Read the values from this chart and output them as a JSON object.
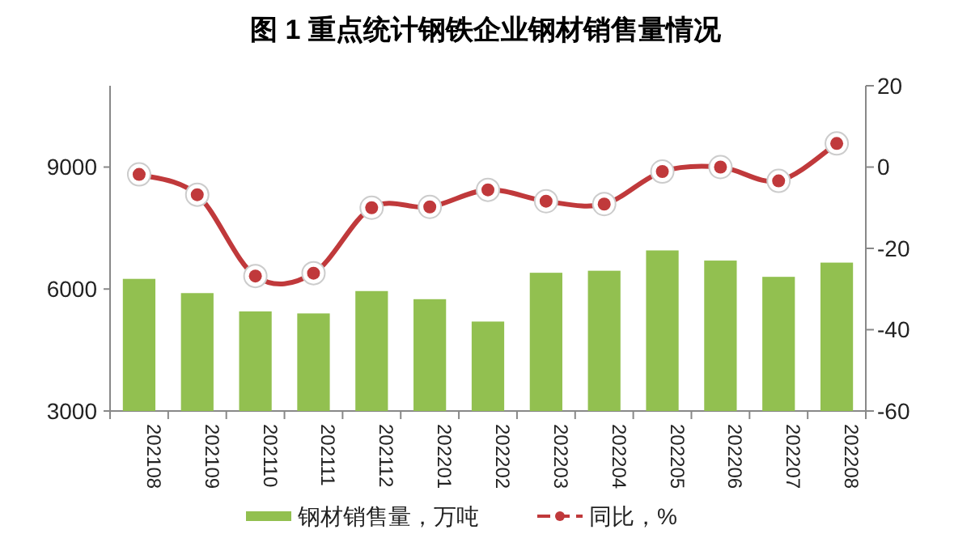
{
  "chart_data": {
    "type": "bar",
    "title": "图 1  重点统计钢铁企业钢材销售量情况",
    "categories": [
      "202108",
      "202109",
      "202110",
      "202111",
      "202112",
      "202201",
      "202202",
      "202203",
      "202204",
      "202205",
      "202206",
      "202207",
      "202208"
    ],
    "series": [
      {
        "name": "钢材销售量，万吨",
        "color": "#92c050",
        "values": [
          6250,
          5900,
          5450,
          5400,
          5950,
          5750,
          5200,
          6400,
          6450,
          6950,
          6700,
          6300,
          6650
        ]
      },
      {
        "name": "同比，%",
        "type": "line",
        "axis": "y2",
        "color": "#c0393b",
        "marker": "circle",
        "values": [
          -1.8,
          -6.8,
          -26.8,
          -26.1,
          -10,
          -9.8,
          -5.6,
          -8.4,
          -9.1,
          -1.1,
          0,
          -3.4,
          5.8
        ]
      }
    ],
    "ylim": [
      3000,
      11000
    ],
    "yticks": [
      3000,
      6000,
      9000
    ],
    "y2lim": [
      -60,
      20
    ],
    "y2ticks": [
      -60,
      -40,
      -20,
      0,
      20
    ],
    "grid": false,
    "legend": "bottom"
  }
}
